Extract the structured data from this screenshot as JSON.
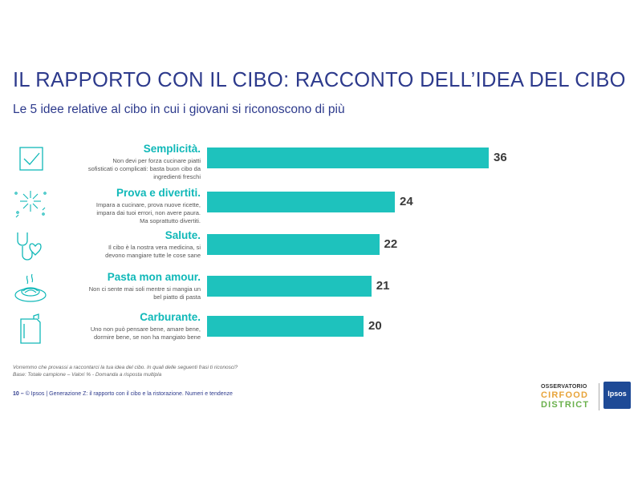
{
  "header": {
    "title": "IL RAPPORTO CON IL CIBO: RACCONTO DELL’IDEA DEL CIBO",
    "subtitle": "Le 5 idee relative al cibo in cui i giovani si riconoscono di più"
  },
  "chart_data": {
    "type": "bar",
    "orientation": "horizontal",
    "categories": [
      "Semplicità.",
      "Prova e divertiti.",
      "Salute.",
      "Pasta mon amour.",
      "Carburante."
    ],
    "values": [
      36,
      24,
      22,
      21,
      20
    ],
    "xlim": [
      0,
      40
    ],
    "grid": false,
    "descriptions": [
      [
        "Non devi per forza cucinare piatti",
        "sofisticati o complicati: basta buon cibo da",
        "ingredienti freschi"
      ],
      [
        "Impara a cucinare, prova nuove ricette,",
        "impara dai tuoi errori, non avere paura.",
        "Ma soprattutto divertiti."
      ],
      [
        "Il cibo è la nostra vera medicina, si",
        "devono mangiare tutte le cose sane"
      ],
      [
        "Non ci sente mai soli mentre si mangia un",
        "bel piatto di pasta"
      ],
      [
        "Uno non può pensare bene, amare bene,",
        "dormire bene, se non ha mangiato bene"
      ]
    ],
    "icons": [
      "checkbox-icon",
      "fireworks-icon",
      "stethoscope-heart-icon",
      "pasta-plate-icon",
      "fuel-can-icon"
    ],
    "bar_color": "#1ec2bd",
    "label_color": "#10b8b8"
  },
  "notes": {
    "question": "Vorremmo che provassi a raccontarci la tua idea del cibo. In quali delle seguenti frasi ti riconosci?",
    "base": "Base: Totale campione – Valori %  - Domanda a risposta multipla"
  },
  "footer": {
    "page": "10 –",
    "text": "© Ipsos | Generazione Z: il rapporto con il cibo e la ristorazione. Numeri e tendenze"
  },
  "brand": {
    "observatory_line": "OSSERVATORIO",
    "cirfood": "CIRFOOD",
    "district": "DISTRICT",
    "ipsos": "Ipsos"
  }
}
